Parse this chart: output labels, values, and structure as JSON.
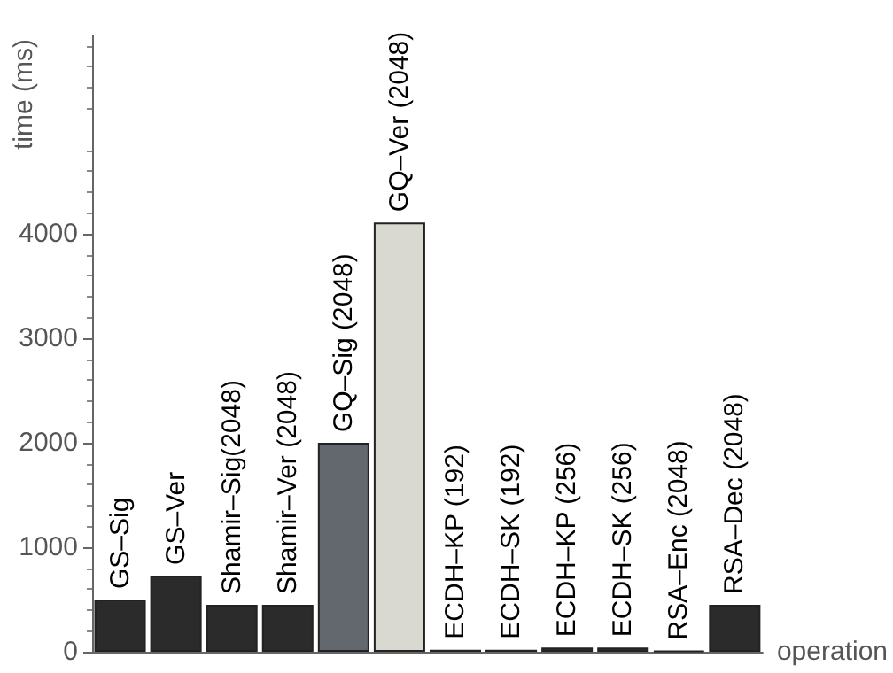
{
  "chart_data": {
    "type": "bar",
    "xlabel": "operation",
    "ylabel": "time (ms)",
    "categories": [
      "GS–Sig",
      "GS–Ver",
      "Shamir–Sig(2048)",
      "Shamir–Ver (2048)",
      "GQ–Sig (2048)",
      "GQ–Ver (2048)",
      "ECDH–KP (192)",
      "ECDH–SK (192)",
      "ECDH–KP (256)",
      "ECDH–SK (256)",
      "RSA–Enc (2048)",
      "RSA–Dec (2048)"
    ],
    "values": [
      500,
      730,
      450,
      450,
      2000,
      4110,
      20,
      20,
      40,
      40,
      10,
      450
    ],
    "colors": [
      "#2b2b2b",
      "#2b2b2b",
      "#2b2b2b",
      "#2b2b2b",
      "#62686d",
      "#d9d9d2",
      "#2b2b2b",
      "#2b2b2b",
      "#2b2b2b",
      "#2b2b2b",
      "#2b2b2b",
      "#2b2b2b"
    ],
    "ylim": [
      0,
      5900
    ],
    "yticks": [
      0,
      1000,
      2000,
      3000,
      4000
    ],
    "grid": false
  }
}
